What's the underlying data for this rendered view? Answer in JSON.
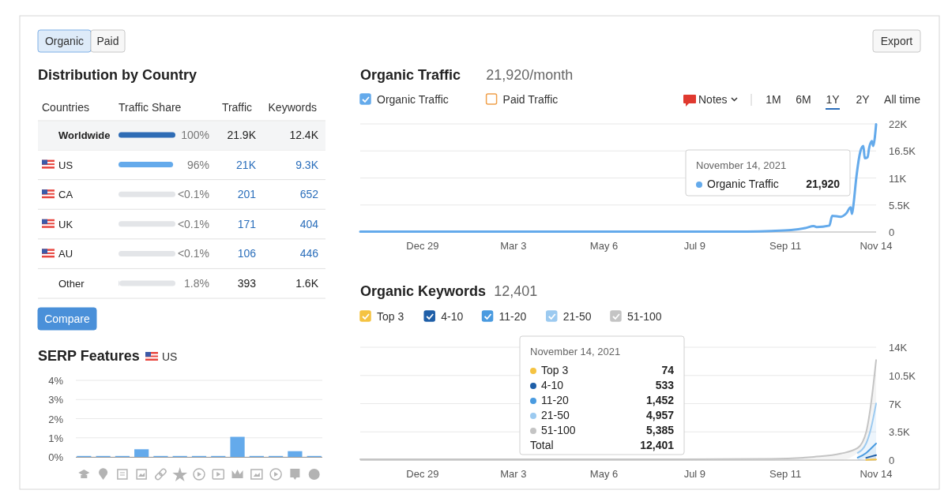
{
  "chart_data": [
    {
      "type": "bar",
      "orientation": "horizontal",
      "title": "Distribution by Country",
      "categories": [
        "Worldwide",
        "US",
        "CA",
        "UK",
        "AU",
        "Other"
      ],
      "values": [
        100,
        96,
        0.05,
        0.05,
        0.05,
        1.8
      ],
      "colors": [
        "#2e6cb5",
        "#64aaeb",
        "#dfe2e6",
        "#dfe2e6",
        "#dfe2e6",
        "#dfe2e6"
      ],
      "value_labels": [
        "100%",
        "96%",
        "<0.1%",
        "<0.1%",
        "<0.1%",
        "1.8%"
      ],
      "annotations": [
        "Countries",
        "Traffic Share",
        "Traffic",
        "Keywords",
        "21.9K",
        "12.4K",
        "21K",
        "9.3K",
        "201",
        "652",
        "171",
        "404",
        "106",
        "446",
        "393",
        "1.6K"
      ]
    },
    {
      "type": "line",
      "title": "Organic Traffic",
      "subtitle": "21,920/month",
      "legend": "top left",
      "grid": "y",
      "x": [
        "2020-11-15",
        "2021-01-15",
        "2021-03-15",
        "2021-05-15",
        "2021-07-15",
        "2021-08-15",
        "2021-09-01",
        "2021-09-15",
        "2021-09-25",
        "2021-10-01",
        "2021-10-03",
        "2021-10-12",
        "2021-10-14",
        "2021-10-20",
        "2021-10-24",
        "2021-10-27",
        "2021-10-28",
        "2021-10-29",
        "2021-10-31",
        "2021-11-03",
        "2021-11-05",
        "2021-11-06",
        "2021-11-08",
        "2021-11-09",
        "2021-11-11",
        "2021-11-12",
        "2021-11-13",
        "2021-11-14"
      ],
      "series": [
        {
          "name": "Organic Traffic",
          "color": "#64aaeb",
          "values": [
            80,
            80,
            80,
            80,
            80,
            100,
            200,
            400,
            800,
            1200,
            1000,
            1300,
            3300,
            3100,
            3800,
            5000,
            3700,
            5500,
            11000,
            16500,
            17500,
            15000,
            15200,
            17000,
            18500,
            17500,
            19000,
            21920
          ]
        },
        {
          "name": "Paid Traffic",
          "color": "#f0a04b",
          "values": [
            null,
            null,
            null,
            null,
            null,
            null,
            null,
            null,
            null,
            null,
            null,
            null,
            null,
            null,
            null,
            null,
            null,
            null,
            null,
            null,
            null,
            null,
            null,
            null,
            null,
            null,
            null,
            null
          ]
        }
      ],
      "xlim": [
        "2020-11-15",
        "2021-11-14"
      ],
      "xticks": [
        {
          "value": "2020-12-29",
          "label": "Dec 29"
        },
        {
          "value": "2021-03-03",
          "label": "Mar 3"
        },
        {
          "value": "2021-05-06",
          "label": "May 6"
        },
        {
          "value": "2021-07-09",
          "label": "Jul 9"
        },
        {
          "value": "2021-09-11",
          "label": "Sep 11"
        },
        {
          "value": "2021-11-14",
          "label": "Nov 14"
        }
      ],
      "ylim": [
        0,
        22000
      ],
      "yticks": [
        0,
        {
          "value": 5500,
          "label": "5.5K"
        },
        {
          "value": 11000,
          "label": "11K"
        },
        {
          "value": 16500,
          "label": "16.5K"
        },
        {
          "value": 22000,
          "label": "22K"
        }
      ],
      "annotations": [
        "November 14, 2021",
        "Organic Traffic",
        "21,920",
        "Notes",
        "1M",
        "6M",
        "1Y",
        "2Y",
        "All time"
      ]
    },
    {
      "type": "line",
      "stacked": true,
      "title": "Organic Keywords",
      "subtitle": "12,401",
      "legend": "top left",
      "grid": "y",
      "x": [
        "2020-11-15",
        "2021-03-01",
        "2021-07-01",
        "2021-09-01",
        "2021-10-01",
        "2021-10-20",
        "2021-11-01",
        "2021-11-07",
        "2021-11-10",
        "2021-11-14"
      ],
      "series": [
        {
          "name": "Top 3",
          "type": "area",
          "color": "#f5c342",
          "values": [
            null,
            null,
            null,
            null,
            null,
            null,
            null,
            30,
            45,
            74
          ]
        },
        {
          "name": "4-10",
          "type": "area",
          "color": "#1f5fa8",
          "values": [
            null,
            null,
            null,
            null,
            null,
            null,
            null,
            250,
            380,
            533
          ]
        },
        {
          "name": "11-20",
          "type": "area",
          "color": "#4a9be0",
          "values": [
            null,
            null,
            null,
            null,
            null,
            null,
            300,
            600,
            950,
            1452
          ]
        },
        {
          "name": "21-50",
          "type": "area",
          "color": "#9ccaf0",
          "values": [
            null,
            null,
            null,
            null,
            null,
            null,
            600,
            1200,
            2300,
            4957
          ]
        },
        {
          "name": "51-100",
          "type": "area",
          "color": "#c4c4c4",
          "values": [
            100,
            100,
            100,
            150,
            400,
            800,
            600,
            1400,
            2800,
            5385
          ]
        }
      ],
      "xlim": [
        "2020-11-15",
        "2021-11-14"
      ],
      "xticks": [
        {
          "value": "2020-12-29",
          "label": "Dec 29"
        },
        {
          "value": "2021-03-03",
          "label": "Mar 3"
        },
        {
          "value": "2021-05-06",
          "label": "May 6"
        },
        {
          "value": "2021-07-09",
          "label": "Jul 9"
        },
        {
          "value": "2021-09-11",
          "label": "Sep 11"
        },
        {
          "value": "2021-11-14",
          "label": "Nov 14"
        }
      ],
      "ylim": [
        0,
        14000
      ],
      "yticks": [
        0,
        {
          "value": 3500,
          "label": "3.5K"
        },
        {
          "value": 7000,
          "label": "7K"
        },
        {
          "value": 10500,
          "label": "10.5K"
        },
        {
          "value": 14000,
          "label": "14K"
        }
      ],
      "annotations": [
        "November 14, 2021",
        "Top 3",
        "74",
        "4-10",
        "533",
        "11-20",
        "1,452",
        "21-50",
        "4,957",
        "51-100",
        "5,385",
        "Total",
        "12,401"
      ]
    },
    {
      "type": "bar",
      "title": "SERP Features",
      "subtitle": "US",
      "grid": "y",
      "color": "#64aaeb",
      "categories": [
        null,
        null,
        null,
        null,
        null,
        null,
        null,
        null,
        null,
        null,
        null,
        null,
        null
      ],
      "values": [
        0.05,
        0.05,
        0.05,
        0.4,
        0.05,
        0.05,
        0.05,
        0.05,
        1.05,
        0.05,
        0.05,
        0.3,
        0.05
      ],
      "ylim": [
        0,
        4
      ],
      "yticks": [
        {
          "value": 0,
          "label": "0%"
        },
        {
          "value": 1,
          "label": "1%"
        },
        {
          "value": 2,
          "label": "2%"
        },
        {
          "value": 3,
          "label": "3%"
        },
        {
          "value": 4,
          "label": "4%"
        }
      ]
    },
    {
      "type": "other",
      "annotations": [
        "Organic",
        "Paid",
        "Export",
        "Compare"
      ]
    }
  ]
}
